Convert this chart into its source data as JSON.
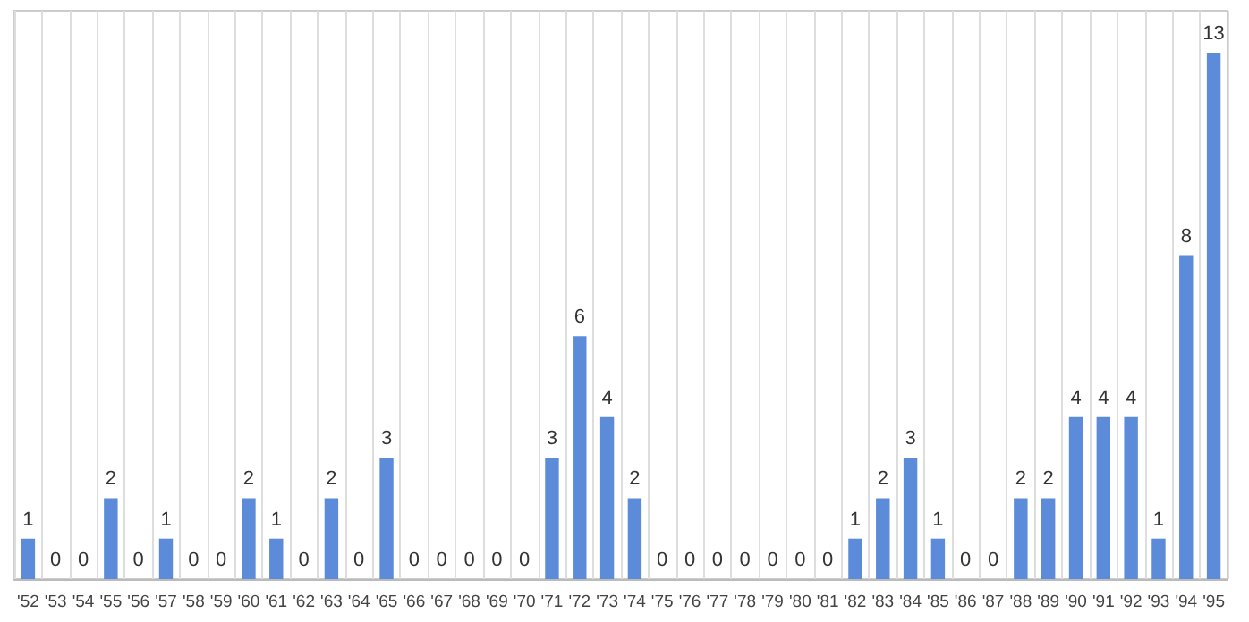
{
  "chart_data": {
    "type": "bar",
    "categories": [
      "'52",
      "'53",
      "'54",
      "'55",
      "'56",
      "'57",
      "'58",
      "'59",
      "'60",
      "'61",
      "'62",
      "'63",
      "'64",
      "'65",
      "'66",
      "'67",
      "'68",
      "'69",
      "'70",
      "'71",
      "'72",
      "'73",
      "'74",
      "'75",
      "'76",
      "'77",
      "'78",
      "'79",
      "'80",
      "'81",
      "'82",
      "'83",
      "'84",
      "'85",
      "'86",
      "'87",
      "'88",
      "'89",
      "'90",
      "'91",
      "'92",
      "'93",
      "'94",
      "'95"
    ],
    "values": [
      1,
      0,
      0,
      2,
      0,
      1,
      0,
      0,
      2,
      1,
      0,
      2,
      0,
      3,
      0,
      0,
      0,
      0,
      0,
      3,
      6,
      4,
      2,
      0,
      0,
      0,
      0,
      0,
      0,
      0,
      1,
      2,
      3,
      1,
      0,
      0,
      2,
      2,
      4,
      4,
      4,
      1,
      8,
      13
    ],
    "color": "#5b8bd9",
    "data_labels": true,
    "grid": "x",
    "tick_labels": "x"
  }
}
